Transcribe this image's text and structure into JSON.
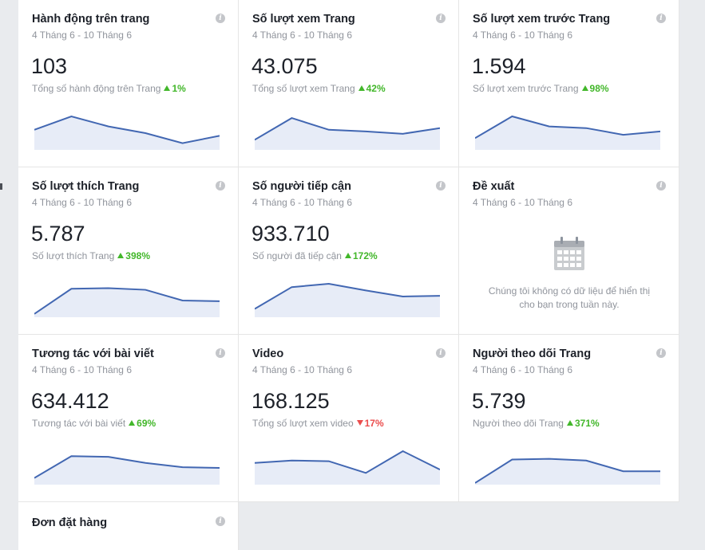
{
  "cards": [
    {
      "id": "page_actions",
      "title": "Hành động trên trang",
      "date_range": "4 Tháng 6 - 10 Tháng 6",
      "value": "103",
      "subtitle": "Tổng số hành động trên Trang",
      "change": "1%",
      "trend": "up",
      "sparkline": [
        0.6,
        1.0,
        0.7,
        0.5,
        0.2,
        0.42
      ]
    },
    {
      "id": "page_views",
      "title": "Số lượt xem Trang",
      "date_range": "4 Tháng 6 - 10 Tháng 6",
      "value": "43.075",
      "subtitle": "Tổng số lượt xem Trang",
      "change": "42%",
      "trend": "up",
      "sparkline": [
        0.3,
        0.95,
        0.6,
        0.55,
        0.48,
        0.65
      ]
    },
    {
      "id": "page_previews",
      "title": "Số lượt xem trước Trang",
      "date_range": "4 Tháng 6 - 10 Tháng 6",
      "value": "1.594",
      "subtitle": "Số lượt xem trước Trang",
      "change": "98%",
      "trend": "up",
      "sparkline": [
        0.35,
        1.0,
        0.7,
        0.65,
        0.45,
        0.55
      ]
    },
    {
      "id": "page_likes",
      "title": "Số lượt thích Trang",
      "date_range": "4 Tháng 6 - 10 Tháng 6",
      "value": "5.787",
      "subtitle": "Số lượt thích Trang",
      "change": "398%",
      "trend": "up",
      "sparkline": [
        0.1,
        0.85,
        0.87,
        0.82,
        0.5,
        0.48
      ]
    },
    {
      "id": "reach",
      "title": "Số người tiếp cận",
      "date_range": "4 Tháng 6 - 10 Tháng 6",
      "value": "933.710",
      "subtitle": "Số người đã tiếp cận",
      "change": "172%",
      "trend": "up",
      "sparkline": [
        0.25,
        0.9,
        1.0,
        0.8,
        0.62,
        0.64
      ]
    },
    {
      "id": "recommendations",
      "title": "Đề xuất",
      "date_range": "4 Tháng 6 - 10 Tháng 6",
      "empty_message": "Chúng tôi không có dữ liệu để hiển thị cho bạn trong tuần này.",
      "empty_icon": "calendar-icon"
    },
    {
      "id": "post_engagement",
      "title": "Tương tác với bài viết",
      "date_range": "4 Tháng 6 - 10 Tháng 6",
      "value": "634.412",
      "subtitle": "Tương tác với bài viết",
      "change": "69%",
      "trend": "up",
      "sparkline": [
        0.2,
        0.85,
        0.83,
        0.65,
        0.52,
        0.5
      ]
    },
    {
      "id": "video",
      "title": "Video",
      "date_range": "4 Tháng 6 - 10 Tháng 6",
      "value": "168.125",
      "subtitle": "Tổng số lượt xem video",
      "change": "17%",
      "trend": "down",
      "sparkline": [
        0.65,
        0.72,
        0.7,
        0.35,
        1.0,
        0.45
      ]
    },
    {
      "id": "page_followers",
      "title": "Người theo dõi Trang",
      "date_range": "4 Tháng 6 - 10 Tháng 6",
      "value": "5.739",
      "subtitle": "Người theo dõi Trang",
      "change": "371%",
      "trend": "up",
      "sparkline": [
        0.05,
        0.75,
        0.77,
        0.72,
        0.4,
        0.4
      ]
    },
    {
      "id": "orders",
      "title": "Đơn đặt hàng"
    }
  ],
  "colors": {
    "line": "#4267b2",
    "fill": "#e7ecf7",
    "up": "#42b72a",
    "down": "#eb4d4d"
  },
  "info_glyph": "i"
}
